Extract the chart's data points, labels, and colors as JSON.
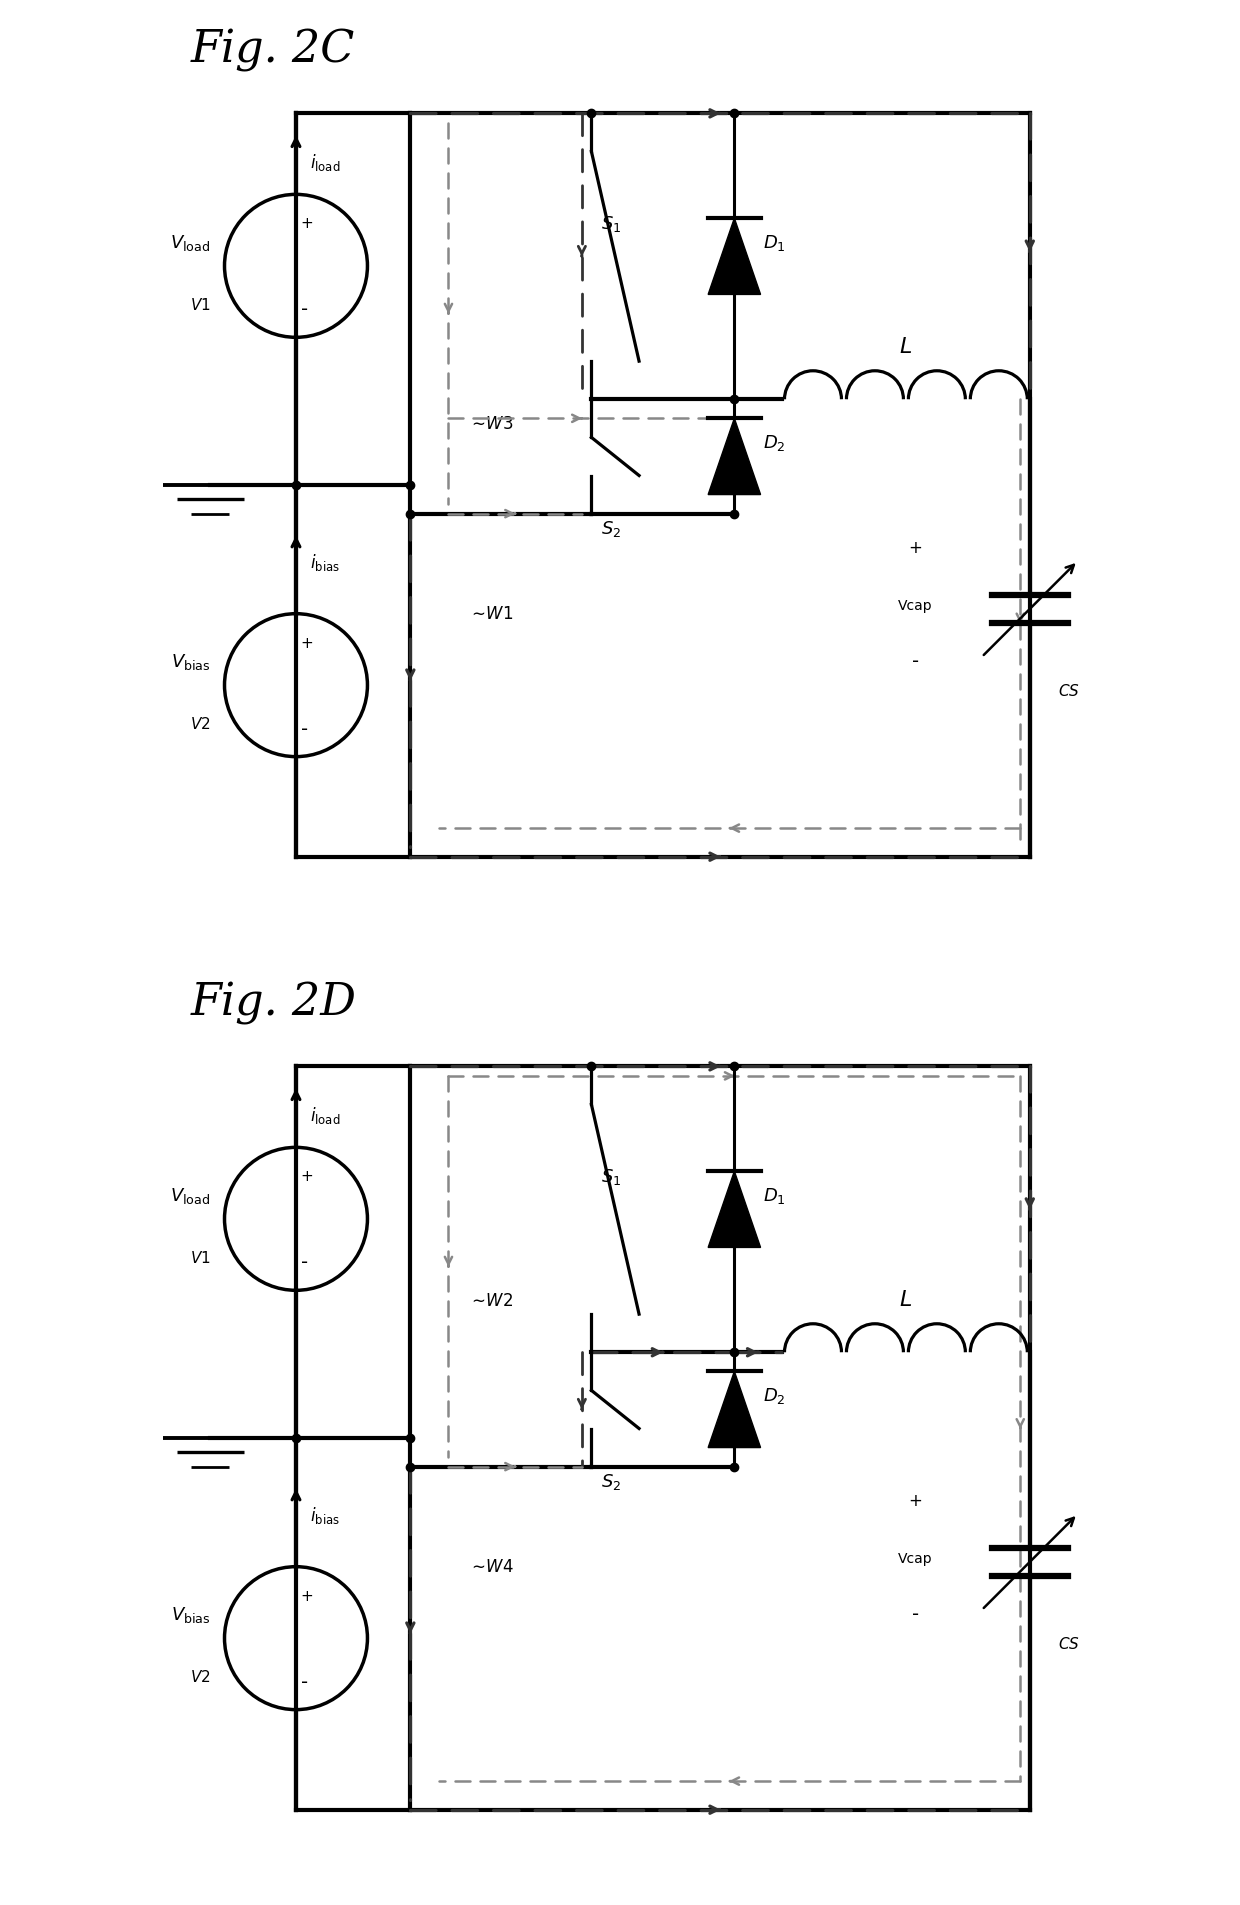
{
  "fig2c_title": "Fig. 2C",
  "fig2d_title": "Fig. 2D",
  "bg_color": "#ffffff",
  "line_color": "#000000",
  "lw_thick": 3.0,
  "lw_medium": 2.0,
  "lw_thin": 1.5
}
